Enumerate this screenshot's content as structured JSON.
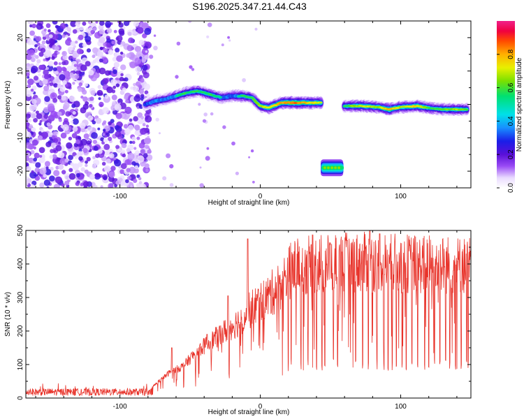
{
  "title": "S196.2025.347.21.44.C43",
  "chart_data": [
    {
      "type": "heatmap",
      "name": "spectrogram",
      "title": "S196.2025.347.21.44.C43",
      "xlabel": "Height of straight line (km)",
      "ylabel": "Frequency (Hz)",
      "xlim": [
        -167,
        150
      ],
      "ylim": [
        -25,
        25
      ],
      "xticks": [
        -100,
        0,
        100
      ],
      "yticks": [
        -20,
        -10,
        0,
        10,
        20
      ],
      "noise_region_x": [
        -167,
        -82
      ],
      "ridge": [
        {
          "x": -82,
          "y": 0.0,
          "a": 0.45
        },
        {
          "x": -75,
          "y": 1.0,
          "a": 0.55
        },
        {
          "x": -68,
          "y": 1.5,
          "a": 0.5
        },
        {
          "x": -60,
          "y": 2.5,
          "a": 0.55
        },
        {
          "x": -52,
          "y": 3.5,
          "a": 0.6
        },
        {
          "x": -44,
          "y": 4.0,
          "a": 0.6
        },
        {
          "x": -36,
          "y": 3.0,
          "a": 0.6
        },
        {
          "x": -28,
          "y": 2.0,
          "a": 0.55
        },
        {
          "x": -20,
          "y": 2.5,
          "a": 0.5
        },
        {
          "x": -12,
          "y": 2.5,
          "a": 0.6
        },
        {
          "x": -6,
          "y": 2.0,
          "a": 0.6
        },
        {
          "x": 0,
          "y": -0.5,
          "a": 0.7
        },
        {
          "x": 6,
          "y": -1.0,
          "a": 0.75
        },
        {
          "x": 15,
          "y": 0.5,
          "a": 0.85
        },
        {
          "x": 25,
          "y": 0.5,
          "a": 0.9
        },
        {
          "x": 35,
          "y": 0.5,
          "a": 0.8
        },
        {
          "x": 43,
          "y": 0.5,
          "a": 0.75
        }
      ],
      "ridge2": [
        {
          "x": 60,
          "y": -0.5,
          "a": 0.6
        },
        {
          "x": 72,
          "y": -0.5,
          "a": 0.75
        },
        {
          "x": 84,
          "y": -0.8,
          "a": 0.7
        },
        {
          "x": 92,
          "y": -1.5,
          "a": 0.85
        },
        {
          "x": 100,
          "y": -0.8,
          "a": 0.7
        },
        {
          "x": 112,
          "y": -0.5,
          "a": 0.8
        },
        {
          "x": 122,
          "y": -1.2,
          "a": 0.6
        },
        {
          "x": 132,
          "y": -1.5,
          "a": 0.65
        },
        {
          "x": 140,
          "y": -1.5,
          "a": 0.7
        },
        {
          "x": 147,
          "y": -1.5,
          "a": 0.65
        }
      ],
      "blob": {
        "x": [
          43,
          59
        ],
        "y": -19,
        "a": 0.55
      },
      "colorbar": {
        "label": "Normalized spectral amplitude",
        "range": [
          0,
          1
        ],
        "ticks": [
          0.0,
          0.2,
          0.4,
          0.6,
          0.8
        ],
        "tick_labels": [
          "0.0",
          "0.2",
          "0.4",
          "0.6",
          "0.8"
        ]
      }
    },
    {
      "type": "line",
      "name": "snr",
      "xlabel": "Height of straight line (km)",
      "ylabel": "SNR (10 * v/v)",
      "xlim": [
        -167,
        150
      ],
      "ylim": [
        0,
        500
      ],
      "xticks": [
        -100,
        0,
        100
      ],
      "yticks": [
        0,
        100,
        200,
        300,
        400,
        500
      ],
      "color": "#e8332a",
      "envelope": [
        {
          "x": -167,
          "y": 18
        },
        {
          "x": -80,
          "y": 18
        },
        {
          "x": -75,
          "y": 40
        },
        {
          "x": -65,
          "y": 75
        },
        {
          "x": -55,
          "y": 95
        },
        {
          "x": -45,
          "y": 140
        },
        {
          "x": -35,
          "y": 170
        },
        {
          "x": -25,
          "y": 200
        },
        {
          "x": -15,
          "y": 230
        },
        {
          "x": -5,
          "y": 270
        },
        {
          "x": 5,
          "y": 300
        },
        {
          "x": 15,
          "y": 340
        },
        {
          "x": 22,
          "y": 385
        },
        {
          "x": 30,
          "y": 395
        },
        {
          "x": 50,
          "y": 405
        },
        {
          "x": 80,
          "y": 405
        },
        {
          "x": 110,
          "y": 400
        },
        {
          "x": 150,
          "y": 395
        }
      ],
      "peaks": [
        {
          "x": -63,
          "y": 150
        },
        {
          "x": -38,
          "y": 190
        },
        {
          "x": -23,
          "y": 305
        },
        {
          "x": -9,
          "y": 475
        },
        {
          "x": 62,
          "y": 470
        },
        {
          "x": 78,
          "y": 500
        },
        {
          "x": 85,
          "y": 490
        }
      ],
      "dropouts": [
        20,
        22,
        29,
        34,
        40,
        44,
        46,
        52,
        55,
        66,
        68,
        73,
        77,
        83,
        88,
        91,
        94,
        97,
        101,
        104,
        108,
        112,
        117,
        120,
        124,
        128,
        132,
        135,
        139,
        143,
        148
      ]
    }
  ]
}
